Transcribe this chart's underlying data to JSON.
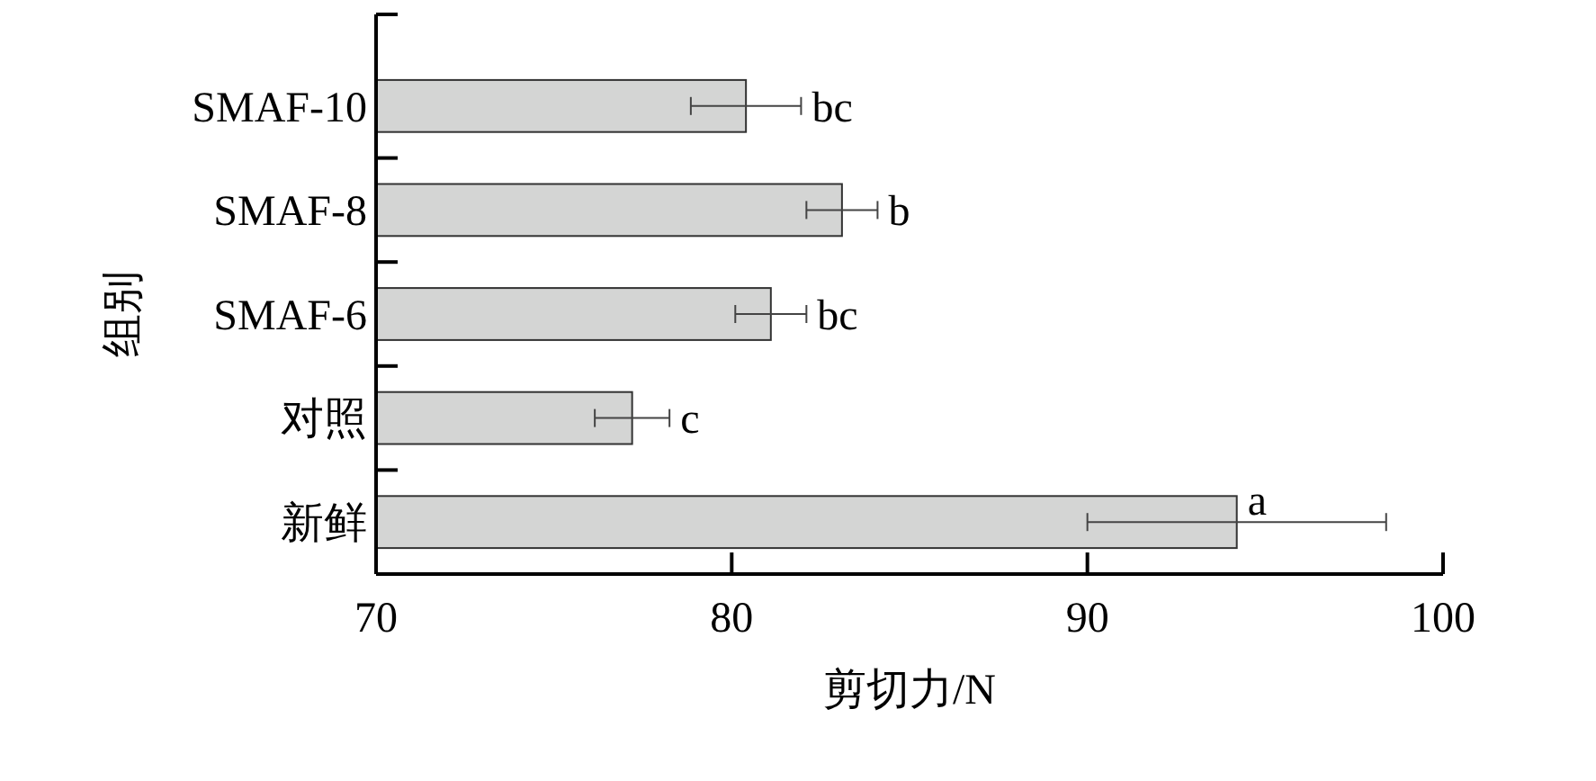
{
  "chart_data": {
    "type": "bar",
    "orientation": "horizontal",
    "xlabel": "剪切力/N",
    "ylabel": "组别",
    "categories": [
      "SMAF-10",
      "SMAF-8",
      "SMAF-6",
      "对照",
      "新鲜"
    ],
    "values": [
      80.4,
      83.1,
      81.1,
      77.2,
      94.2
    ],
    "errors": [
      1.55,
      1.0,
      1.0,
      1.05,
      4.2
    ],
    "value_labels": [
      "bc",
      "b",
      "bc",
      "c",
      "a"
    ],
    "color": "#d4d5d4",
    "xlim": [
      70,
      100
    ],
    "xticks": [
      70,
      80,
      90,
      100
    ],
    "grid": false
  }
}
